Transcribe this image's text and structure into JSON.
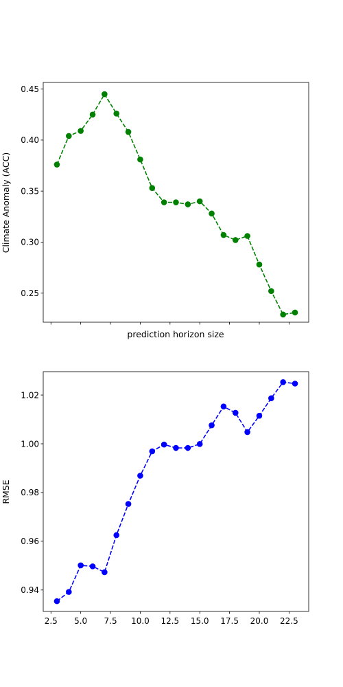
{
  "chart_data": [
    {
      "type": "line",
      "xlabel": "prediction horizon size",
      "ylabel": "Climate Anomaly (ACC)",
      "xlim": [
        1.85,
        24.15
      ],
      "ylim": [
        0.2215,
        0.4565
      ],
      "xticks": [
        2.5,
        5.0,
        7.5,
        10.0,
        12.5,
        15.0,
        17.5,
        20.0,
        22.5
      ],
      "xtick_labels_visible": false,
      "yticks": [
        0.25,
        0.3,
        0.35,
        0.4,
        0.45
      ],
      "ytick_labels": [
        "0.25",
        "0.30",
        "0.35",
        "0.40",
        "0.45"
      ],
      "grid": false,
      "color": "#008000",
      "linestyle": "dashed",
      "marker": "circle",
      "series": [
        {
          "x": [
            3,
            4,
            5,
            6,
            7,
            8,
            9,
            10,
            11,
            12,
            13,
            14,
            15,
            16,
            17,
            18,
            19,
            20,
            21,
            22,
            23
          ],
          "values": [
            0.376,
            0.404,
            0.409,
            0.425,
            0.445,
            0.426,
            0.408,
            0.381,
            0.353,
            0.339,
            0.339,
            0.337,
            0.34,
            0.328,
            0.307,
            0.302,
            0.306,
            0.278,
            0.252,
            0.229,
            0.231
          ]
        }
      ]
    },
    {
      "type": "line",
      "xlabel": "",
      "ylabel": "RMSE",
      "xlim": [
        1.85,
        24.15
      ],
      "ylim": [
        0.9312,
        1.0296
      ],
      "xticks": [
        2.5,
        5.0,
        7.5,
        10.0,
        12.5,
        15.0,
        17.5,
        20.0,
        22.5
      ],
      "xtick_labels": [
        "2.5",
        "5.0",
        "7.5",
        "10.0",
        "12.5",
        "15.0",
        "17.5",
        "20.0",
        "22.5"
      ],
      "yticks": [
        0.94,
        0.96,
        0.98,
        1.0,
        1.02
      ],
      "ytick_labels": [
        "0.94",
        "0.96",
        "0.98",
        "1.00",
        "1.02"
      ],
      "grid": false,
      "color": "#0000ff",
      "linestyle": "dashed",
      "marker": "circle",
      "series": [
        {
          "x": [
            3,
            4,
            5,
            6,
            7,
            8,
            9,
            10,
            11,
            12,
            13,
            14,
            15,
            16,
            17,
            18,
            19,
            20,
            21,
            22,
            23
          ],
          "values": [
            0.9354,
            0.9392,
            0.9501,
            0.9497,
            0.9473,
            0.9625,
            0.9753,
            0.9869,
            0.9969,
            0.9997,
            0.9983,
            0.9983,
            0.9999,
            1.0076,
            1.0153,
            1.0127,
            1.0048,
            1.0115,
            1.0187,
            1.0253,
            1.0247
          ]
        }
      ]
    }
  ]
}
